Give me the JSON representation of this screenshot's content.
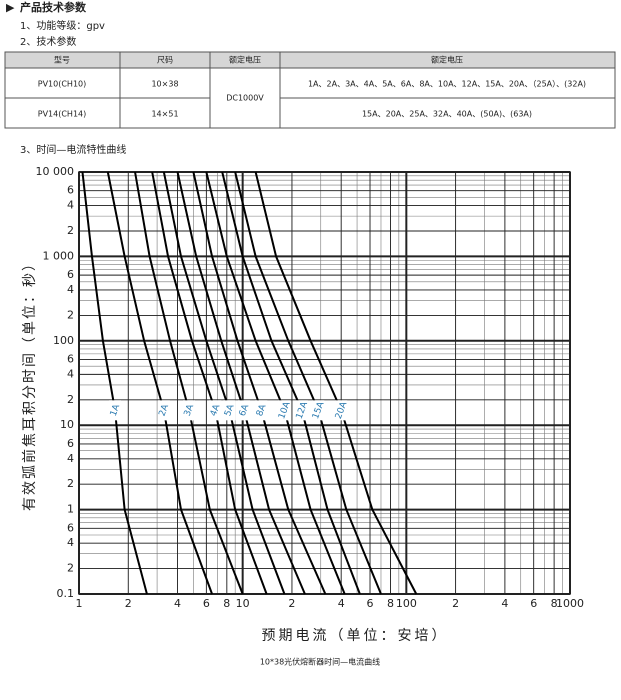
{
  "header": {
    "section_title": "产品技术参数",
    "item1": "1、功能等级：gpv",
    "item2": "2、技术参数",
    "item3": "3、时间—电流特性曲线"
  },
  "table": {
    "columns": [
      "型号",
      "尺码",
      "额定电压",
      "额定电压"
    ],
    "voltage": "DC1000V",
    "rows": [
      [
        "PV10(CH10)",
        "10×38",
        "1A、2A、3A、4A、5A、6A、8A、10A、12A、15A、20A、（25A）、(32A)"
      ],
      [
        "PV14(CH14)",
        "14×51",
        "15A、20A、25A、32A、40A、(50A)、(63A)"
      ]
    ]
  },
  "chart_data": {
    "type": "line",
    "xlabel": "预期电流（单位：安培）",
    "ylabel": "有效弧前焦耳积分时间（单位：秒）",
    "caption": "10*38光伏熔断器时间—电流曲线",
    "xscale": "log",
    "yscale": "log",
    "grid": true,
    "label_color": "#2a7ab0",
    "line_color": "#000000",
    "xlim": [
      1,
      1000
    ],
    "ylim": [
      0.1,
      10000
    ],
    "xticks": [
      1,
      2,
      4,
      6,
      8,
      10,
      {
        "value": 20,
        "label": "2"
      },
      {
        "value": 40,
        "label": "4"
      },
      {
        "value": 60,
        "label": "6"
      },
      {
        "value": 80,
        "label": "8"
      },
      100,
      {
        "value": 200,
        "label": "2"
      },
      {
        "value": 400,
        "label": "4"
      },
      {
        "value": 600,
        "label": "6"
      },
      {
        "value": 800,
        "label": "8"
      },
      1000
    ],
    "yticks": [
      0.1,
      {
        "value": 0.2,
        "label": "2"
      },
      {
        "value": 0.4,
        "label": "4"
      },
      {
        "value": 0.6,
        "label": "6"
      },
      1,
      2,
      4,
      6,
      10,
      {
        "value": 20,
        "label": "2"
      },
      {
        "value": 40,
        "label": "4"
      },
      {
        "value": 60,
        "label": "6"
      },
      100,
      {
        "value": 200,
        "label": "2"
      },
      {
        "value": 400,
        "label": "4"
      },
      {
        "value": 600,
        "label": "6"
      },
      {
        "value": 1000,
        "label": "1 000"
      },
      {
        "value": 2000,
        "label": "2"
      },
      {
        "value": 4000,
        "label": "4"
      },
      {
        "value": 6000,
        "label": "6"
      },
      {
        "value": 10000,
        "label": "10 000"
      }
    ],
    "series": [
      {
        "name": "1A",
        "x": [
          1.05,
          1.2,
          1.4,
          1.66,
          1.9,
          2.6
        ],
        "values": [
          10000,
          1000,
          100,
          15,
          1,
          0.1
        ]
      },
      {
        "name": "2A",
        "x": [
          1.5,
          1.9,
          2.5,
          3.3,
          4.2,
          6.5
        ],
        "values": [
          10000,
          1000,
          100,
          15,
          1,
          0.1
        ]
      },
      {
        "name": "3A",
        "x": [
          2.2,
          2.7,
          3.6,
          4.7,
          6.3,
          10
        ],
        "values": [
          10000,
          1000,
          100,
          15,
          1,
          0.1
        ]
      },
      {
        "name": "4A",
        "x": [
          2.8,
          3.5,
          4.9,
          6.8,
          9,
          14
        ],
        "values": [
          10000,
          1000,
          100,
          15,
          1,
          0.1
        ]
      },
      {
        "name": "5A",
        "x": [
          3.3,
          4.2,
          6,
          8.3,
          11.5,
          18
        ],
        "values": [
          10000,
          1000,
          100,
          15,
          1,
          0.1
        ]
      },
      {
        "name": "6A",
        "x": [
          4,
          5.2,
          7.4,
          10.2,
          14.5,
          24
        ],
        "values": [
          10000,
          1000,
          100,
          15,
          1,
          0.1
        ]
      },
      {
        "name": "8A",
        "x": [
          5,
          6.5,
          9.3,
          13,
          19,
          32
        ],
        "values": [
          10000,
          1000,
          100,
          15,
          1,
          0.1
        ]
      },
      {
        "name": "10A",
        "x": [
          6,
          8,
          12,
          18,
          26,
          42
        ],
        "values": [
          10000,
          1000,
          100,
          15,
          1,
          0.1
        ]
      },
      {
        "name": "12A",
        "x": [
          7.5,
          10,
          15,
          23,
          33,
          52
        ],
        "values": [
          10000,
          1000,
          100,
          15,
          1,
          0.1
        ]
      },
      {
        "name": "15A",
        "x": [
          9,
          12,
          19,
          29,
          43,
          70
        ],
        "values": [
          10000,
          1000,
          100,
          15,
          1,
          0.1
        ]
      },
      {
        "name": "20A",
        "x": [
          12,
          16,
          26,
          40,
          62,
          115
        ],
        "values": [
          10000,
          1000,
          100,
          15,
          1,
          0.1
        ]
      }
    ]
  }
}
